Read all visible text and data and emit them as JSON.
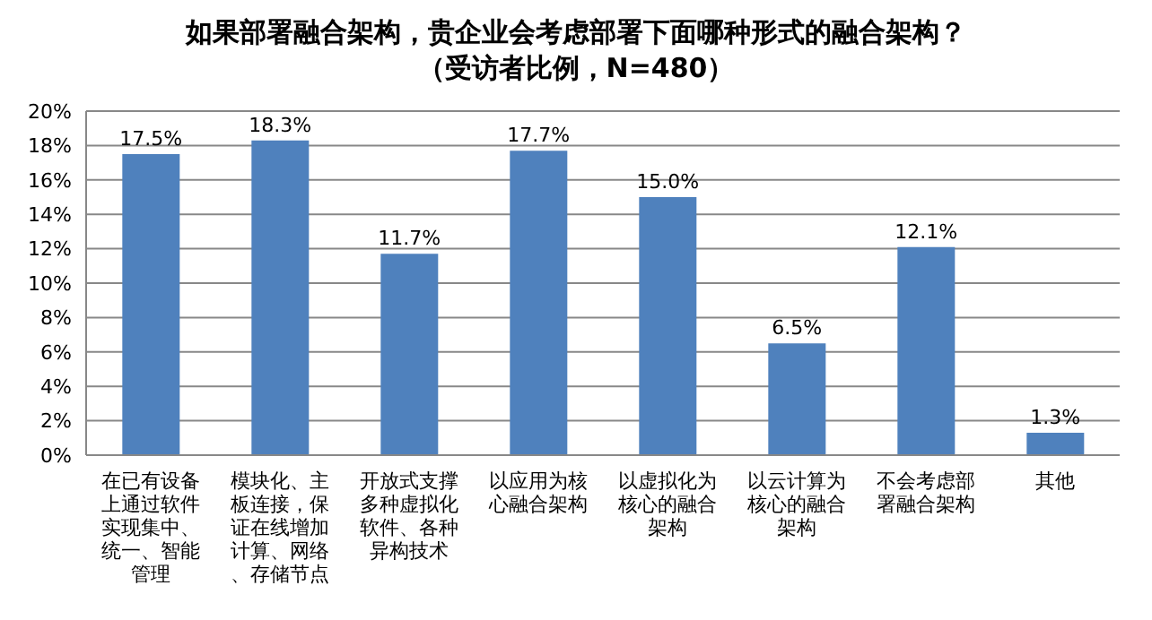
{
  "chart_data": {
    "type": "bar",
    "title": "如果部署融合架构，贵企业会考虑部署下面哪种形式的融合架构？",
    "subtitle": "（受访者比例，N=480）",
    "categories": [
      "在已有设备上通过软件实现集中、统一、智能管理",
      "模块化、主板连接，保证在线增加计算、网络、存储节点",
      "开放式支撑多种虚拟化软件、各种异构技术",
      "以应用为核心融合架构",
      "以虚拟化为核心的融合架构",
      "以云计算为核心的融合架构",
      "不会考虑部署融合架构",
      "其他"
    ],
    "values": [
      17.5,
      18.3,
      11.7,
      17.7,
      15.0,
      6.5,
      12.1,
      1.3
    ],
    "value_labels": [
      "17.5%",
      "18.3%",
      "11.7%",
      "17.7%",
      "15.0%",
      "6.5%",
      "12.1%",
      "1.3%"
    ],
    "color": "#4f81bd",
    "ylim": [
      0,
      20
    ],
    "yticks": [
      {
        "value": 0,
        "label": "0%"
      },
      {
        "value": 2,
        "label": "2%"
      },
      {
        "value": 4,
        "label": "4%"
      },
      {
        "value": 6,
        "label": "6%"
      },
      {
        "value": 8,
        "label": "8%"
      },
      {
        "value": 10,
        "label": "10%"
      },
      {
        "value": 12,
        "label": "12%"
      },
      {
        "value": 14,
        "label": "14%"
      },
      {
        "value": 16,
        "label": "16%"
      },
      {
        "value": 18,
        "label": "18%"
      },
      {
        "value": 20,
        "label": "20%"
      }
    ],
    "grid": "y",
    "legend": false
  }
}
